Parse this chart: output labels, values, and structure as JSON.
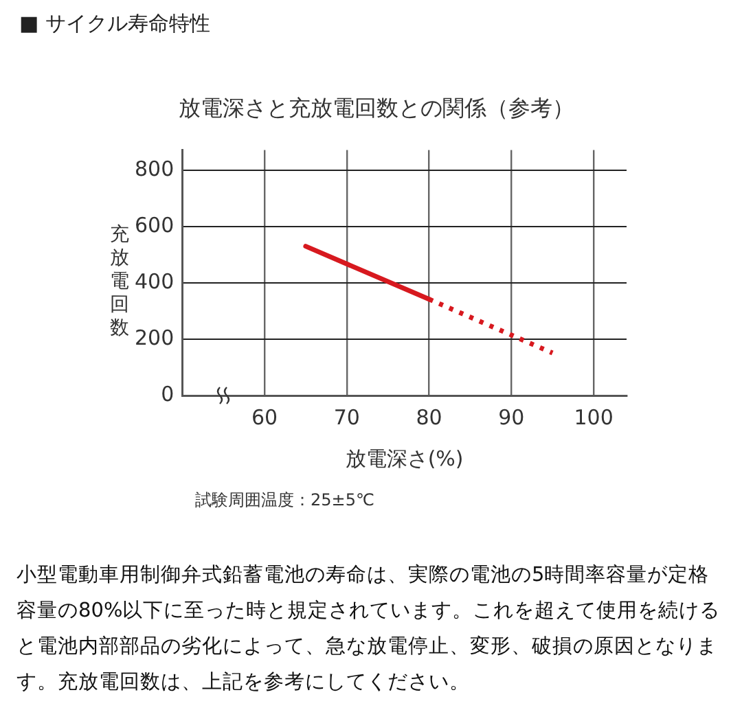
{
  "chart_data": {
    "type": "line",
    "title": "放電深さと充放電回数との関係（参考）",
    "xlabel": "放電深さ(%)",
    "ylabel": "充放電回数",
    "series": [
      {
        "type": "line",
        "x": [
          65,
          80
        ],
        "values": [
          530,
          342
        ],
        "color": "#d7191f",
        "line_style": "solid"
      },
      {
        "type": "line",
        "x": [
          80,
          95
        ],
        "values": [
          342,
          151
        ],
        "color": "#d7191f",
        "line_style": "dotted"
      }
    ],
    "xlim": [
      50,
      104
    ],
    "xticks": [
      60,
      70,
      80,
      90,
      100
    ],
    "ylim": [
      0,
      872
    ],
    "yticks": [
      0,
      200,
      400,
      600,
      800
    ],
    "grid": true,
    "legend": false,
    "marker": "none",
    "annotations": [
      "■ サイクル寿命特性",
      "試験周囲温度：25±5℃",
      "小型電動車用制御弁式鉛蓄電池の寿命は、実際の電池の5時間率容量が定格容量の80%以下に至った時と規定されています。これを超えて使用を続けると電池内部部品の劣化によって、急な放電停止、変形、破損の原因となります。充放電回数は、上記を参考にしてください。"
    ]
  }
}
